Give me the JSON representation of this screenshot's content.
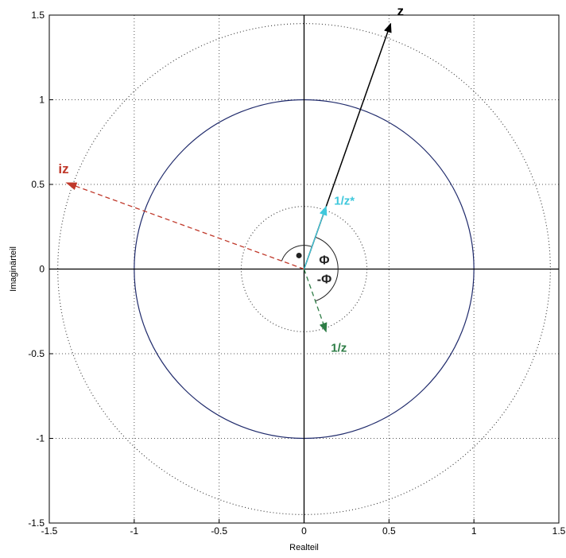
{
  "chart_data": {
    "type": "scatter",
    "title": "",
    "xlabel": "Realteil",
    "ylabel": "Imaginärteil",
    "xlim": [
      -1.5,
      1.5
    ],
    "ylim": [
      -1.5,
      1.5
    ],
    "grid": true,
    "xticks": [
      "-1.5",
      "-1",
      "-0.5",
      "0",
      "0.5",
      "1",
      "1.5"
    ],
    "yticks": [
      "-1.5",
      "-1",
      "-0.5",
      "0",
      "0.5",
      "1",
      "1.5"
    ],
    "xtick_values": [
      -1.5,
      -1,
      -0.5,
      0,
      0.5,
      1,
      1.5
    ],
    "ytick_values": [
      -1.5,
      -1,
      -0.5,
      0,
      0.5,
      1,
      1.5
    ],
    "circles": [
      {
        "radius": 1.0,
        "style": "solid",
        "color": "#1f2a6b"
      },
      {
        "radius": 1.45,
        "style": "dotted",
        "color": "#333333"
      },
      {
        "radius": 0.37,
        "style": "dotted",
        "color": "#333333"
      }
    ],
    "vectors": [
      {
        "name": "z",
        "x": 0.51,
        "y": 1.45,
        "color": "#000000",
        "style": "solid",
        "label": "z"
      },
      {
        "name": "iz",
        "x": -1.4,
        "y": 0.51,
        "color": "#c0392b",
        "style": "dashed",
        "label": "iz"
      },
      {
        "name": "1/z*",
        "x": 0.13,
        "y": 0.37,
        "color": "#3fc8dc",
        "style": "solid",
        "label": "1/z*"
      },
      {
        "name": "1/z",
        "x": 0.13,
        "y": -0.37,
        "color": "#2e7d46",
        "style": "dashed",
        "label": "1/z"
      }
    ],
    "angles": [
      {
        "label": "Φ",
        "radius": 0.2,
        "from_deg": 0,
        "to_deg": 70
      },
      {
        "label": "-Φ",
        "radius": 0.2,
        "from_deg": -70,
        "to_deg": 0
      },
      {
        "label": "",
        "radius": 0.14,
        "from_deg": 70,
        "to_deg": 160
      }
    ],
    "points": [
      {
        "x": -0.03,
        "y": 0.08,
        "color": "#222222"
      }
    ]
  }
}
